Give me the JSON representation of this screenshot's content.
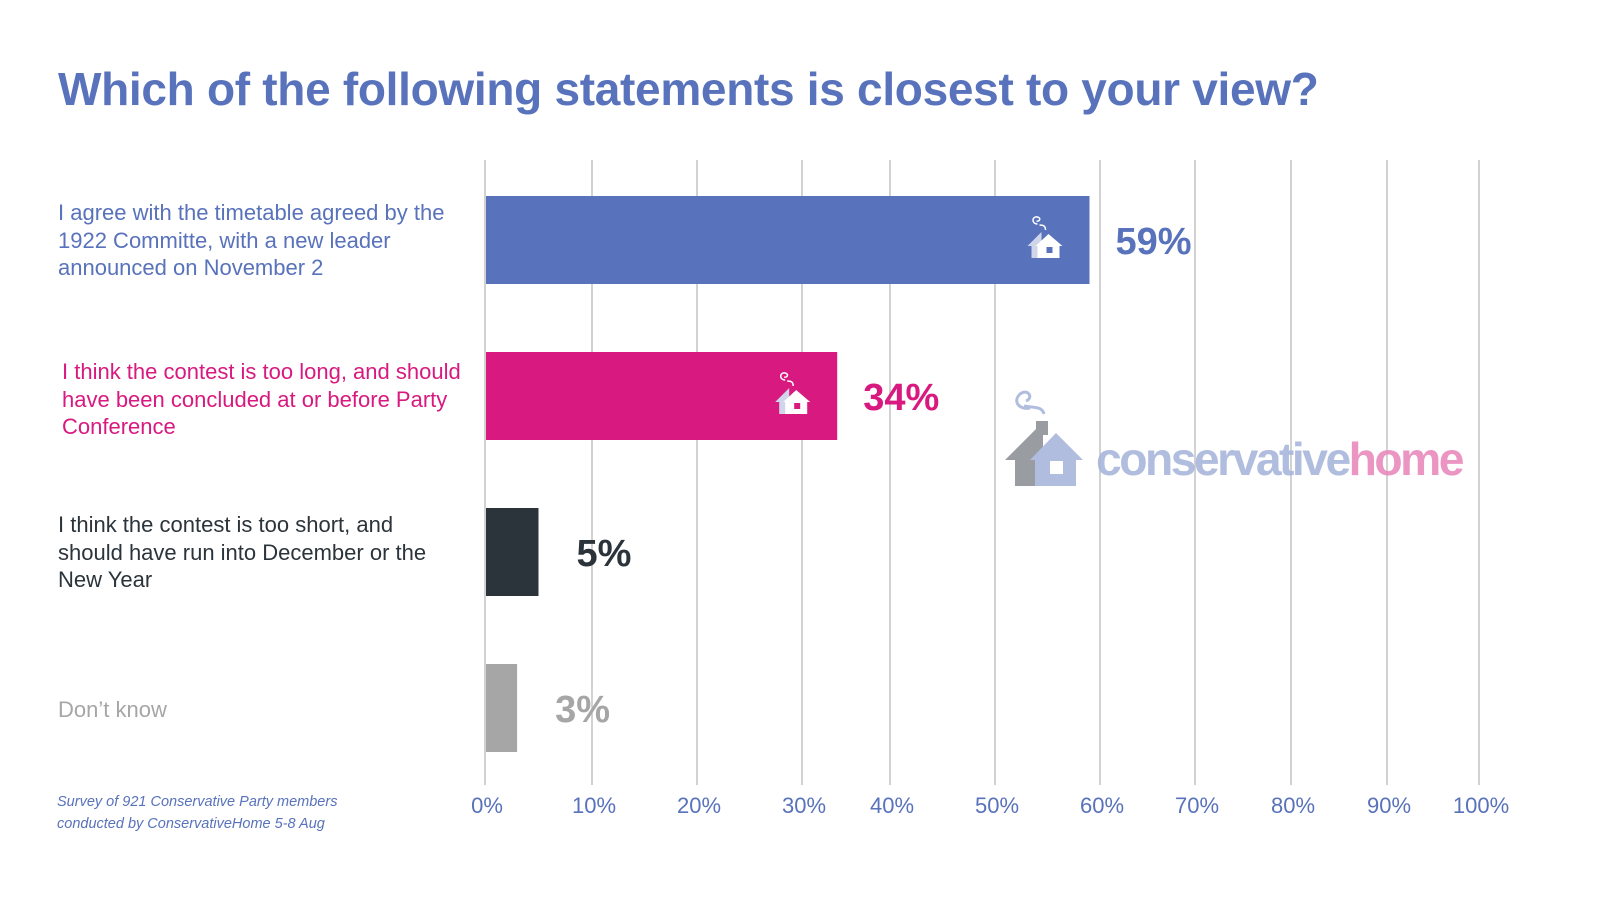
{
  "chart_data": {
    "type": "bar",
    "orientation": "horizontal",
    "title": "Which of the following statements is closest to your view?",
    "categories": [
      "I agree with the timetable agreed by the 1922 Committe, with a new leader announced on November 2",
      "I think the contest is too long, and should have been concluded at or before Party Conference",
      "I think the contest is too short, and should have run into December or the New Year",
      "Don’t know"
    ],
    "values": [
      59,
      34,
      5,
      3
    ],
    "data_labels": [
      "59%",
      "34%",
      "5%",
      "3%"
    ],
    "colors": [
      "#5872bb",
      "#d8197f",
      "#2b343b",
      "#a6a6a6"
    ],
    "xlim": [
      0,
      100
    ],
    "x_ticks": [
      "0%",
      "10%",
      "20%",
      "30%",
      "40%",
      "50%",
      "60%",
      "70%",
      "80%",
      "90%",
      "100%"
    ],
    "grid": true,
    "footnote": [
      "Survey of 921 Conservative Party members",
      "conducted by ConservativeHome 5-8 Aug"
    ]
  },
  "logo": {
    "part1": "conservative",
    "part2": "home",
    "color1": "#a8b6db",
    "color2": "#e98abd"
  },
  "axis_color": "#5872bb"
}
